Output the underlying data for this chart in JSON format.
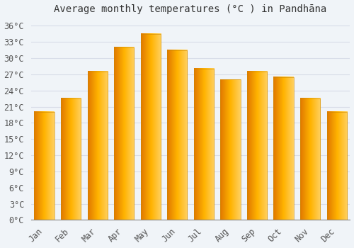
{
  "title": "Average monthly temperatures (°C ) in Pandhāna",
  "months": [
    "Jan",
    "Feb",
    "Mar",
    "Apr",
    "May",
    "Jun",
    "Jul",
    "Aug",
    "Sep",
    "Oct",
    "Nov",
    "Dec"
  ],
  "temperatures": [
    20.0,
    22.5,
    27.5,
    32.0,
    34.5,
    31.5,
    28.0,
    26.0,
    27.5,
    26.5,
    22.5,
    20.0
  ],
  "bar_color_main": "#FFB300",
  "bar_color_left": "#E07800",
  "bar_color_right": "#FFD060",
  "background_color": "#F0F4F8",
  "plot_bg_color": "#F0F4F8",
  "grid_color": "#D8DDE8",
  "spine_color": "#888888",
  "ytick_labels": [
    "0°C",
    "3°C",
    "6°C",
    "9°C",
    "12°C",
    "15°C",
    "18°C",
    "21°C",
    "24°C",
    "27°C",
    "30°C",
    "33°C",
    "36°C"
  ],
  "ytick_values": [
    0,
    3,
    6,
    9,
    12,
    15,
    18,
    21,
    24,
    27,
    30,
    33,
    36
  ],
  "ylim": [
    0,
    37.5
  ],
  "title_fontsize": 10,
  "tick_fontsize": 8.5,
  "font_family": "monospace",
  "bar_width": 0.75
}
